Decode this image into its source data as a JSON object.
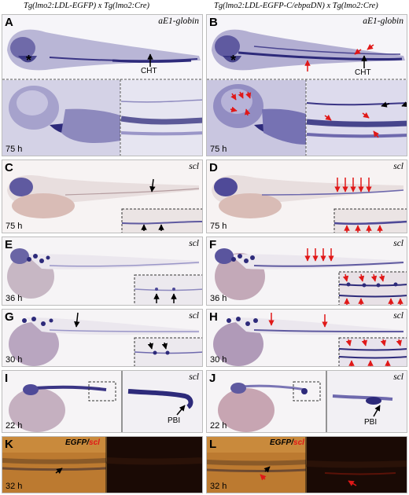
{
  "header": {
    "left": "Tg(lmo2:LDL-EGFP) x Tg(lmo2:Cre)",
    "right": "Tg(lmo2:LDL-EGFP-C/ebpαDN) x Tg(lmo2:Cre)"
  },
  "panels": {
    "A": {
      "letter": "A",
      "gene": "aE1-globin",
      "time": "75 h",
      "label": "CHT",
      "asterisk": "*"
    },
    "B": {
      "letter": "B",
      "gene": "aE1-globin",
      "time": "75 h",
      "label": "CHT",
      "asterisk": "*"
    },
    "C": {
      "letter": "C",
      "gene": "scl",
      "time": "75 h"
    },
    "D": {
      "letter": "D",
      "gene": "scl",
      "time": "75 h"
    },
    "E": {
      "letter": "E",
      "gene": "scl",
      "time": "36 h"
    },
    "F": {
      "letter": "F",
      "gene": "scl",
      "time": "36 h"
    },
    "G": {
      "letter": "G",
      "gene": "scl",
      "time": "30 h"
    },
    "H": {
      "letter": "H",
      "gene": "scl",
      "time": "30 h"
    },
    "I": {
      "letter": "I",
      "gene": "scl",
      "time": "22 h",
      "label": "PBI"
    },
    "J": {
      "letter": "J",
      "gene": "scl",
      "time": "22 h",
      "label": "PBI"
    },
    "K": {
      "letter": "K",
      "gene_a": "EGFP",
      "slash": "/",
      "gene_b": "scl",
      "time": "32 h"
    },
    "L": {
      "letter": "L",
      "gene_a": "EGFP",
      "slash": "/",
      "gene_b": "scl",
      "time": "32 h"
    }
  },
  "colors": {
    "stain": "#2d2a7a",
    "arrow_red": "#e01818",
    "arrow_black": "#000000",
    "gfp_bg": "#b8762e",
    "fluor_bg": "#1a0a05"
  }
}
